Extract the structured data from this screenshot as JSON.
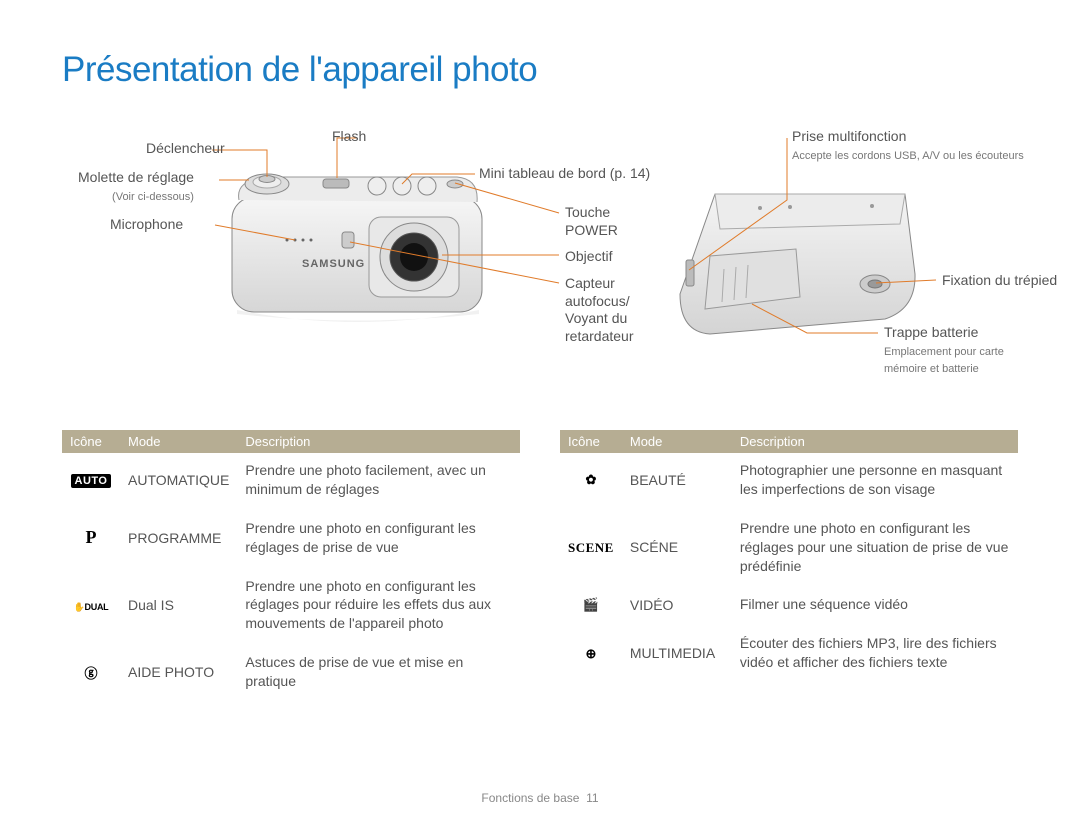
{
  "title": {
    "text": "Présentation de l'appareil photo",
    "color": "#1a7cc4"
  },
  "connector_color": "#e07b2a",
  "front_labels": {
    "declencheur": "Déclencheur",
    "flash": "Flash",
    "molette": "Molette de réglage",
    "molette_sub": "(Voir ci-dessous)",
    "micro": "Microphone",
    "mini_tdb": "Mini tableau de bord (p. 14)",
    "touche_power_l1": "Touche",
    "touche_power_l2": "POWER",
    "objectif": "Objectif",
    "capteur_l1": "Capteur",
    "capteur_l2": "autofocus/",
    "capteur_l3": "Voyant du",
    "capteur_l4": "retardateur"
  },
  "bottom_labels": {
    "prise": "Prise multifonction",
    "prise_sub": "Accepte les cordons USB, A/V ou les écouteurs",
    "trepied": "Fixation du trépied",
    "trappe": "Trappe batterie",
    "trappe_sub_l1": "Emplacement pour carte",
    "trappe_sub_l2": "mémoire et batterie"
  },
  "table_headers": {
    "icone": "Icône",
    "mode": "Mode",
    "desc": "Description"
  },
  "left_table": [
    {
      "icon_class": "ico-auto",
      "icon_text": "AUTO",
      "mode": "AUTOMATIQUE",
      "desc": "Prendre une photo facilement, avec un minimum de réglages"
    },
    {
      "icon_class": "ico-p",
      "icon_text": "P",
      "mode": "PROGRAMME",
      "desc": "Prendre une photo en configurant les réglages de prise de vue"
    },
    {
      "icon_class": "ico-dual",
      "icon_text": "✋DUAL",
      "mode": "Dual IS",
      "desc": "Prendre une photo en configurant les réglages pour réduire les effets dus aux mouvements de l'appareil photo"
    },
    {
      "icon_class": "",
      "icon_text": "ⓖ",
      "mode": "AIDE PHOTO",
      "desc": "Astuces de prise de vue et mise en pratique"
    }
  ],
  "right_table": [
    {
      "icon_class": "",
      "icon_text": "✿",
      "mode": "BEAUTÉ",
      "desc": "Photographier une personne en masquant les imperfections de son visage"
    },
    {
      "icon_class": "ico-scene",
      "icon_text": "SCENE",
      "mode": "SCÉNE",
      "desc": "Prendre une photo en configurant les réglages pour une situation de prise de vue prédéfinie"
    },
    {
      "icon_class": "",
      "icon_text": "🎬",
      "mode": "VIDÉO",
      "desc": "Filmer une séquence vidéo"
    },
    {
      "icon_class": "",
      "icon_text": "⊕",
      "mode": "MULTIMEDIA",
      "desc": "Écouter des fichiers MP3, lire des fichiers vidéo et afficher des fichiers texte"
    }
  ],
  "footer": {
    "label": "Fonctions de base",
    "page": "11"
  }
}
